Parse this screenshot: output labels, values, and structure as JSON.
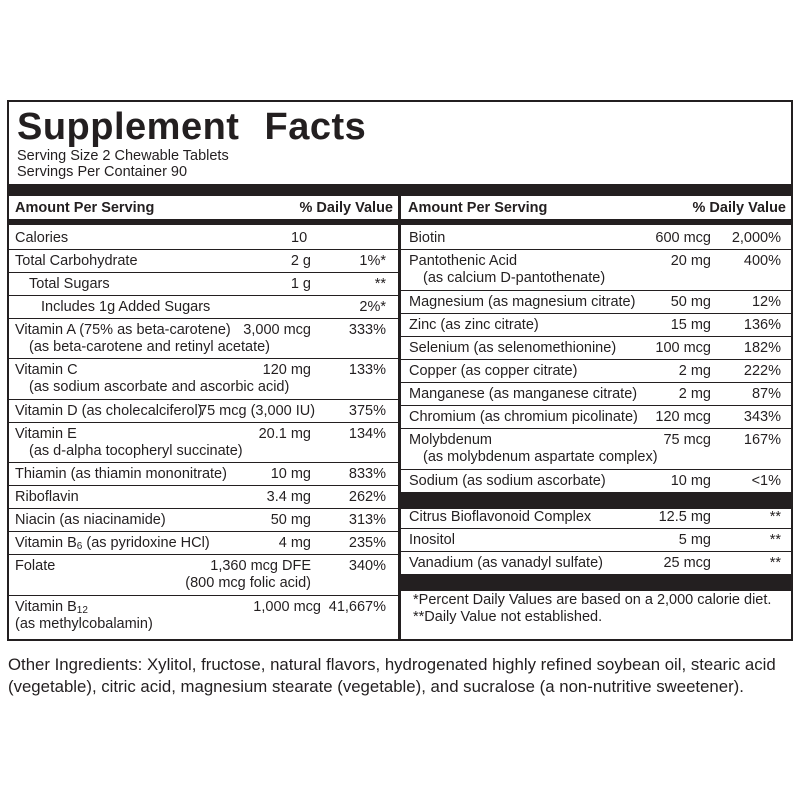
{
  "title": "Supplement Facts",
  "serving_size": "Serving Size 2 Chewable Tablets",
  "servings_per_container": "Servings Per Container 90",
  "left_header": {
    "amount": "Amount Per Serving",
    "dv": "% Daily Value"
  },
  "right_header": {
    "amount": "Amount Per Serving",
    "dv": "% Daily Value"
  },
  "left_rows": [
    {
      "name": "Calories",
      "amount": "10",
      "dv": ""
    },
    {
      "name": "Total Carbohydrate",
      "amount": "2 g",
      "dv": "1%*"
    },
    {
      "name": "Total Sugars",
      "amount": "1 g",
      "dv": "**"
    },
    {
      "name": "Includes 1g Added Sugars",
      "amount": "",
      "dv": "2%*"
    },
    {
      "name": "Vitamin A (75% as beta-carotene)",
      "line2": "(as beta-carotene and retinyl acetate)",
      "amount": "3,000 mcg",
      "dv": "333%"
    },
    {
      "name": "Vitamin C",
      "line2": "(as sodium ascorbate and ascorbic acid)",
      "amount": "120 mg",
      "dv": "133%"
    },
    {
      "name": "Vitamin D (as cholecalciferol)",
      "amount": "75 mcg (3,000 IU)",
      "dv": "375%"
    },
    {
      "name": "Vitamin E",
      "line2": "(as d-alpha tocopheryl succinate)",
      "amount": "20.1 mg",
      "dv": "134%"
    },
    {
      "name": "Thiamin (as thiamin mononitrate)",
      "amount": "10 mg",
      "dv": "833%"
    },
    {
      "name": "Riboflavin",
      "amount": "3.4 mg",
      "dv": "262%"
    },
    {
      "name": "Niacin (as niacinamide)",
      "amount": "50 mg",
      "dv": "313%"
    },
    {
      "name_a": "Vitamin B",
      "name_sub": "6",
      "name_b": " (as pyridoxine HCl)",
      "amount": "4 mg",
      "dv": "235%"
    },
    {
      "name": "Folate",
      "amount": "1,360 mcg DFE",
      "amount2": "(800 mcg folic acid)",
      "dv": "340%"
    },
    {
      "name_a": "Vitamin B",
      "name_sub": "12",
      "line2": "(as methylcobalamin)",
      "amount": "1,000 mcg",
      "dv": "41,667%"
    }
  ],
  "right_rows": [
    {
      "name": "Biotin",
      "amount": "600 mcg",
      "dv": "2,000%"
    },
    {
      "name": "Pantothenic Acid",
      "line2": "(as calcium D-pantothenate)",
      "amount": "20 mg",
      "dv": "400%"
    },
    {
      "name": "Magnesium (as magnesium citrate)",
      "amount": "50 mg",
      "dv": "12%"
    },
    {
      "name": "Zinc (as zinc citrate)",
      "amount": "15 mg",
      "dv": "136%"
    },
    {
      "name": "Selenium (as selenomethionine)",
      "amount": "100 mcg",
      "dv": "182%"
    },
    {
      "name": "Copper (as copper citrate)",
      "amount": "2 mg",
      "dv": "222%"
    },
    {
      "name": "Manganese (as manganese citrate)",
      "amount": "2 mg",
      "dv": "87%"
    },
    {
      "name": "Chromium (as chromium picolinate)",
      "amount": "120 mcg",
      "dv": "343%"
    },
    {
      "name": "Molybdenum",
      "line2": "(as molybdenum aspartate complex)",
      "amount": "75 mcg",
      "dv": "167%"
    },
    {
      "name": "Sodium (as sodium ascorbate)",
      "amount": "10 mg",
      "dv": "<1%"
    },
    {
      "name": "Citrus Bioflavonoid Complex",
      "amount": "12.5 mg",
      "dv": "**"
    },
    {
      "name": "Inositol",
      "amount": "5 mg",
      "dv": "**"
    },
    {
      "name": "Vanadium (as vanadyl sulfate)",
      "amount": "25 mcg",
      "dv": "**"
    }
  ],
  "footnotes": [
    "*Percent Daily Values are based on a 2,000 calorie diet.",
    "**Daily Value not established."
  ],
  "other_ingredients": "Other Ingredients: Xylitol, fructose, natural flavors, hydrogenated highly refined soybean oil, stearic acid (vegetable), citric acid, magnesium stearate (vegetable), and sucralose (a non-nutritive sweetener)."
}
